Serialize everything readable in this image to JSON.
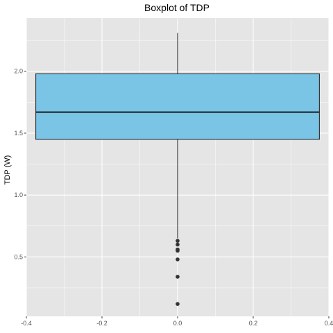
{
  "chart_data": {
    "type": "boxplot",
    "title": "Boxplot of TDP",
    "xlabel": "",
    "ylabel": "TDP (W)",
    "xlim": [
      -0.4,
      0.4
    ],
    "ylim": [
      0.02,
      2.43
    ],
    "x_ticks": [
      -0.4,
      -0.2,
      0.0,
      0.2,
      0.4
    ],
    "x_tick_labels": [
      "-0.4",
      "-0.2",
      "0.0",
      "0.2",
      "0.4"
    ],
    "y_ticks": [
      0.5,
      1.0,
      1.5,
      2.0
    ],
    "y_tick_labels": [
      "0.5",
      "1.0",
      "1.5",
      "2.0"
    ],
    "grid": true,
    "box": {
      "x_center": 0.0,
      "x_extent": [
        -0.375,
        0.375
      ],
      "whisker_low": 0.65,
      "q1": 1.45,
      "median": 1.67,
      "q3": 1.98,
      "whisker_high": 2.31
    },
    "outliers": [
      0.63,
      0.6,
      0.56,
      0.55,
      0.48,
      0.34,
      0.12
    ],
    "colors": {
      "panel": "#e5e5e5",
      "grid_major": "#ffffff",
      "box_fill": "#7ac4e6",
      "box_stroke": "#1a1a1a",
      "whisker": "#333333",
      "outlier": "#333333",
      "tick_text": "#4d4d4d",
      "title_text": "#000000"
    }
  }
}
